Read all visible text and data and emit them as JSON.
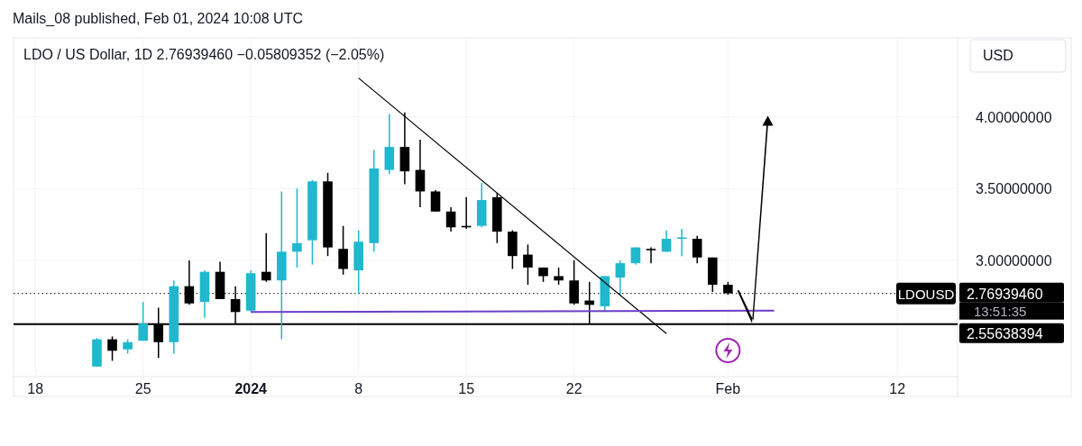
{
  "chart_data": {
    "type": "candlestick",
    "title": "LDO / US Dollar, 1D  2.76939460  −0.05809352 (−2.05%)",
    "subtitle": "Mails_08 published, Feb 01, 2024 10:08 UTC",
    "ylabel": "USD",
    "x": [
      "2023-12-22",
      "2023-12-23",
      "2023-12-24",
      "2023-12-25",
      "2023-12-26",
      "2023-12-27",
      "2023-12-28",
      "2023-12-29",
      "2023-12-30",
      "2023-12-31",
      "2024-01-01",
      "2024-01-02",
      "2024-01-03",
      "2024-01-04",
      "2024-01-05",
      "2024-01-06",
      "2024-01-07",
      "2024-01-08",
      "2024-01-09",
      "2024-01-10",
      "2024-01-11",
      "2024-01-12",
      "2024-01-13",
      "2024-01-14",
      "2024-01-15",
      "2024-01-16",
      "2024-01-17",
      "2024-01-18",
      "2024-01-19",
      "2024-01-20",
      "2024-01-21",
      "2024-01-22",
      "2024-01-23",
      "2024-01-24",
      "2024-01-25",
      "2024-01-26",
      "2024-01-27",
      "2024-01-28",
      "2024-01-29",
      "2024-01-30",
      "2024-01-31",
      "2024-02-01"
    ],
    "ohlc": [
      [
        2.26,
        2.46,
        2.26,
        2.45
      ],
      [
        2.45,
        2.47,
        2.3,
        2.37
      ],
      [
        2.38,
        2.45,
        2.35,
        2.43
      ],
      [
        2.44,
        2.71,
        2.44,
        2.56
      ],
      [
        2.56,
        2.67,
        2.32,
        2.43
      ],
      [
        2.43,
        2.86,
        2.35,
        2.82
      ],
      [
        2.82,
        3.0,
        2.69,
        2.7
      ],
      [
        2.71,
        2.93,
        2.6,
        2.92
      ],
      [
        2.92,
        2.99,
        2.73,
        2.73
      ],
      [
        2.73,
        2.82,
        2.56,
        2.64
      ],
      [
        2.65,
        2.93,
        2.64,
        2.91
      ],
      [
        2.92,
        3.19,
        2.85,
        2.86
      ],
      [
        2.86,
        3.48,
        2.45,
        3.06
      ],
      [
        3.06,
        3.5,
        2.95,
        3.12
      ],
      [
        3.14,
        3.56,
        2.97,
        3.55
      ],
      [
        3.55,
        3.61,
        3.03,
        3.09
      ],
      [
        3.08,
        3.24,
        2.9,
        2.94
      ],
      [
        2.93,
        3.21,
        2.77,
        3.13
      ],
      [
        3.12,
        3.77,
        3.06,
        3.64
      ],
      [
        3.63,
        4.02,
        3.6,
        3.79
      ],
      [
        3.79,
        4.03,
        3.53,
        3.62
      ],
      [
        3.63,
        3.84,
        3.37,
        3.48
      ],
      [
        3.48,
        3.49,
        3.34,
        3.34
      ],
      [
        3.34,
        3.37,
        3.2,
        3.23
      ],
      [
        3.24,
        3.44,
        3.22,
        3.23
      ],
      [
        3.24,
        3.54,
        3.23,
        3.42
      ],
      [
        3.44,
        3.47,
        3.12,
        3.2
      ],
      [
        3.2,
        3.21,
        2.94,
        3.03
      ],
      [
        3.04,
        3.11,
        2.83,
        2.95
      ],
      [
        2.95,
        2.95,
        2.85,
        2.89
      ],
      [
        2.89,
        2.95,
        2.83,
        2.86
      ],
      [
        2.86,
        3.0,
        2.69,
        2.7
      ],
      [
        2.72,
        2.85,
        2.56,
        2.69
      ],
      [
        2.68,
        2.89,
        2.64,
        2.89
      ],
      [
        2.88,
        3.0,
        2.76,
        2.98
      ],
      [
        2.98,
        3.09,
        2.97,
        3.09
      ],
      [
        3.08,
        3.09,
        2.98,
        3.07
      ],
      [
        3.06,
        3.21,
        3.06,
        3.15
      ],
      [
        3.15,
        3.22,
        3.03,
        3.16
      ],
      [
        3.15,
        3.17,
        2.98,
        3.02
      ],
      [
        3.02,
        3.02,
        2.78,
        2.83
      ],
      [
        2.83,
        2.85,
        2.76,
        2.77
      ]
    ],
    "colors": [
      "#1fb8cd",
      "#000000",
      "#1fb8cd",
      "#1fb8cd",
      "#000000",
      "#1fb8cd",
      "#000000",
      "#1fb8cd",
      "#000000",
      "#000000",
      "#1fb8cd",
      "#000000",
      "#1fb8cd",
      "#1fb8cd",
      "#1fb8cd",
      "#000000",
      "#000000",
      "#1fb8cd",
      "#1fb8cd",
      "#1fb8cd",
      "#000000",
      "#000000",
      "#000000",
      "#000000",
      "#000000",
      "#1fb8cd",
      "#000000",
      "#000000",
      "#000000",
      "#000000",
      "#000000",
      "#000000",
      "#000000",
      "#1fb8cd",
      "#1fb8cd",
      "#1fb8cd",
      "#000000",
      "#1fb8cd",
      "#1fb8cd",
      "#000000",
      "#000000",
      "#000000"
    ],
    "series": [
      {
        "type": "line",
        "x": [
          "2024-01-08",
          "2024-01-28"
        ],
        "values": [
          4.27,
          2.49
        ],
        "color": "#000000"
      },
      {
        "type": "line",
        "x": [
          "2024-01-01",
          "2024-02-04"
        ],
        "values": [
          2.64,
          2.65
        ],
        "color": "#6a3fc8"
      }
    ],
    "xlim": [
      "2023-12-16T14:00",
      "2024-02-15T22:00"
    ],
    "xticks": [
      {
        "value": "2023-12-18",
        "label": "18"
      },
      {
        "value": "2023-12-25",
        "label": "25"
      },
      {
        "value": "2024-01-01",
        "label": "2024"
      },
      {
        "value": "2024-01-08",
        "label": "8"
      },
      {
        "value": "2024-01-15",
        "label": "15"
      },
      {
        "value": "2024-01-22",
        "label": "22"
      },
      {
        "value": "2024-02-01",
        "label": "Feb"
      },
      {
        "value": "2024-02-12",
        "label": "12"
      }
    ],
    "ylim": [
      2.19,
      4.55
    ],
    "yticks": [
      {
        "value": 3,
        "label": "3.00000000"
      },
      {
        "value": 3.5,
        "label": "3.50000000"
      },
      {
        "value": 4,
        "label": "4.00000000"
      }
    ],
    "grid": true,
    "ref_lines": [
      {
        "axis": "y",
        "value": 2.7693946,
        "label": "2.76939460",
        "line_style": "dotted",
        "color": "#000000"
      },
      {
        "axis": "y",
        "value": 2.55638394,
        "label": "2.55638394",
        "line_style": "solid",
        "color": "#000000"
      }
    ],
    "annotations": [
      {
        "text": "LDOUSD",
        "y": 2.7693946
      },
      "13:51:35"
    ]
  }
}
